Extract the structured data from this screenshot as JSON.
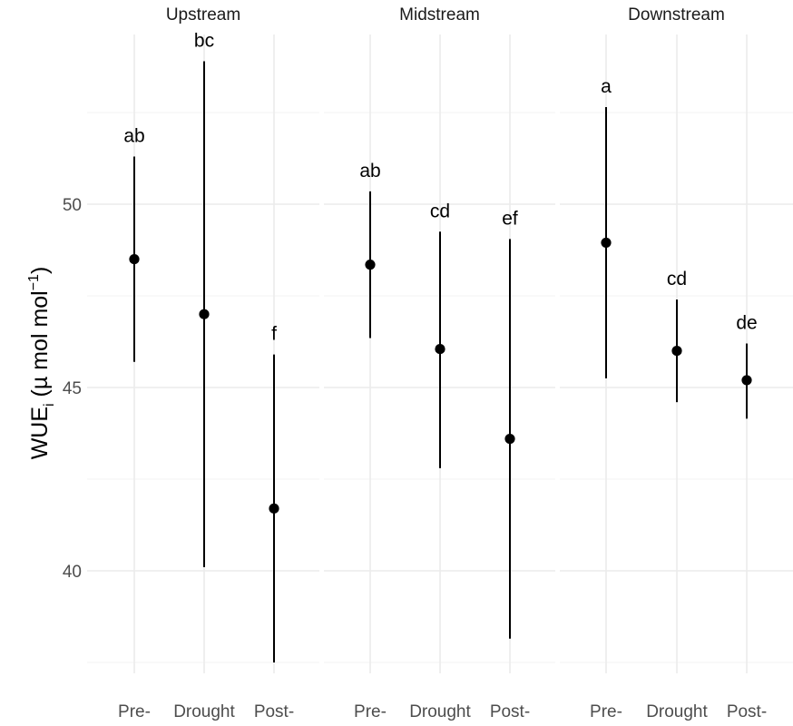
{
  "chart_data": {
    "type": "scatter",
    "subtype": "point-range with facets",
    "ylabel_main": "WUE",
    "ylabel_sub": "i",
    "ylabel_unit_pre": " (µ mol mol",
    "ylabel_sup": "−1",
    "ylabel_unit_post": ")",
    "ylim": [
      37.5,
      54.5
    ],
    "yticks": [
      40,
      45,
      50
    ],
    "categories": [
      "Pre-",
      "Drought",
      "Post-"
    ],
    "grid": true,
    "facets": [
      {
        "name": "Upstream",
        "points": [
          {
            "x": "Pre-",
            "y": 48.5,
            "ymin": 45.7,
            "ymax": 51.3,
            "label": "ab"
          },
          {
            "x": "Drought",
            "y": 47.0,
            "ymin": 40.1,
            "ymax": 53.9,
            "label": "bc"
          },
          {
            "x": "Post-",
            "y": 41.7,
            "ymin": 37.5,
            "ymax": 45.9,
            "label": "f"
          }
        ]
      },
      {
        "name": "Midstream",
        "points": [
          {
            "x": "Pre-",
            "y": 48.35,
            "ymin": 46.35,
            "ymax": 50.35,
            "label": "ab"
          },
          {
            "x": "Drought",
            "y": 46.05,
            "ymin": 42.8,
            "ymax": 49.25,
            "label": "cd"
          },
          {
            "x": "Post-",
            "y": 43.6,
            "ymin": 38.15,
            "ymax": 49.05,
            "label": "ef"
          }
        ]
      },
      {
        "name": "Downstream",
        "points": [
          {
            "x": "Pre-",
            "y": 48.95,
            "ymin": 45.25,
            "ymax": 52.65,
            "label": "a"
          },
          {
            "x": "Drought",
            "y": 46.0,
            "ymin": 44.6,
            "ymax": 47.4,
            "label": "cd"
          },
          {
            "x": "Post-",
            "y": 45.2,
            "ymin": 44.15,
            "ymax": 46.2,
            "label": "de"
          }
        ]
      }
    ]
  }
}
